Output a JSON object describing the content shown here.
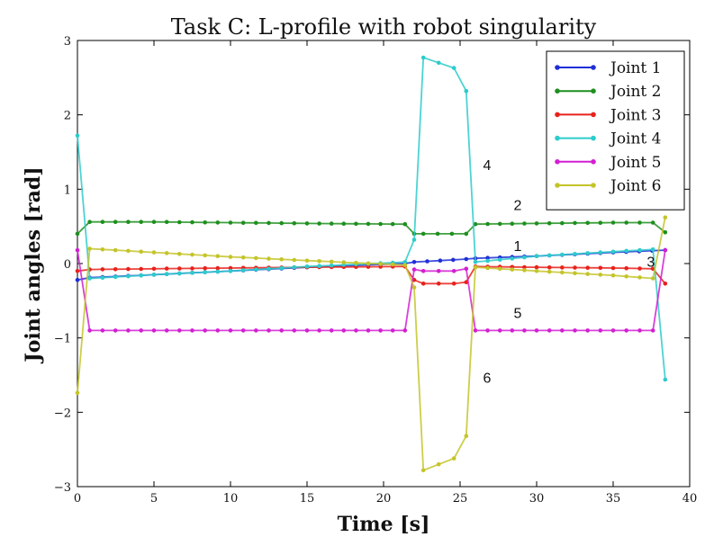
{
  "chart_data": {
    "type": "line",
    "title": "Task C: L-profile with robot singularity",
    "xlabel": "Time [s]",
    "ylabel": "Joint angles [rad]",
    "xlim": [
      0,
      40
    ],
    "ylim": [
      -3,
      3
    ],
    "xticks": [
      0,
      5,
      10,
      15,
      20,
      25,
      30,
      35,
      40
    ],
    "yticks": [
      -3,
      -2,
      -1,
      0,
      1,
      2,
      3
    ],
    "xtick_labels": [
      "0",
      "5",
      "10",
      "15",
      "20",
      "25",
      "30",
      "35",
      "40"
    ],
    "ytick_labels": [
      "−3",
      "−2",
      "−1",
      "0",
      "1",
      "2",
      "3"
    ],
    "grid": false,
    "legend": "top-right",
    "series": [
      {
        "name": "Joint 1",
        "color": "#1f2fd6",
        "x": [
          0,
          0.8,
          5,
          10,
          15,
          21.4,
          22,
          25.4,
          26,
          30,
          35,
          38.4
        ],
        "y": [
          -0.22,
          -0.19,
          -0.15,
          -0.1,
          -0.05,
          0,
          0.02,
          0.06,
          0.07,
          0.1,
          0.15,
          0.18
        ]
      },
      {
        "name": "Joint 2",
        "color": "#1e8f1e",
        "x": [
          0,
          0.8,
          5,
          10,
          15,
          21.4,
          22,
          22.6,
          25.4,
          26,
          30,
          35,
          37.6,
          38.4
        ],
        "y": [
          0.4,
          0.56,
          0.56,
          0.55,
          0.54,
          0.53,
          0.4,
          0.4,
          0.4,
          0.53,
          0.54,
          0.55,
          0.55,
          0.42
        ]
      },
      {
        "name": "Joint 3",
        "color": "#e8211b",
        "x": [
          0,
          0.8,
          5,
          10,
          15,
          21.4,
          22,
          22.6,
          23.6,
          24.6,
          25.4,
          26,
          30,
          35,
          37.6,
          38.4
        ],
        "y": [
          -0.1,
          -0.08,
          -0.07,
          -0.06,
          -0.05,
          -0.04,
          -0.22,
          -0.27,
          -0.27,
          -0.27,
          -0.25,
          -0.04,
          -0.05,
          -0.06,
          -0.07,
          -0.27
        ]
      },
      {
        "name": "Joint 4",
        "color": "#2ecbcb",
        "x": [
          0,
          0.8,
          5,
          10,
          15,
          21.4,
          22,
          22.6,
          23.6,
          24.6,
          25.4,
          26,
          30,
          35,
          37.6,
          38.4
        ],
        "y": [
          1.72,
          -0.2,
          -0.15,
          -0.1,
          -0.04,
          0.02,
          0.32,
          2.77,
          2.7,
          2.63,
          2.32,
          0.02,
          0.1,
          0.16,
          0.19,
          -1.56
        ]
      },
      {
        "name": "Joint 5",
        "color": "#d21fd2",
        "x": [
          0,
          0.8,
          5,
          10,
          15,
          21.4,
          22,
          22.6,
          23.6,
          24.6,
          25.4,
          26,
          30,
          35,
          37.6,
          38.4
        ],
        "y": [
          0.18,
          -0.9,
          -0.9,
          -0.9,
          -0.9,
          -0.9,
          -0.08,
          -0.1,
          -0.1,
          -0.1,
          -0.07,
          -0.9,
          -0.9,
          -0.9,
          -0.9,
          0.18
        ]
      },
      {
        "name": "Joint 6",
        "color": "#c4c42a",
        "x": [
          0,
          0.8,
          5,
          10,
          15,
          21.4,
          22,
          22.6,
          23.6,
          24.6,
          25.4,
          26,
          30,
          35,
          37.6,
          38.4
        ],
        "y": [
          -1.74,
          0.2,
          0.15,
          0.09,
          0.04,
          -0.02,
          -0.32,
          -2.78,
          -2.7,
          -2.62,
          -2.32,
          -0.05,
          -0.1,
          -0.16,
          -0.2,
          0.62
        ]
      }
    ],
    "annotations": [
      {
        "text": "1",
        "x": 28.5,
        "y": 0.17
      },
      {
        "text": "2",
        "x": 28.5,
        "y": 0.72
      },
      {
        "text": "3",
        "x": 37.2,
        "y": -0.04
      },
      {
        "text": "4",
        "x": 26.5,
        "y": 1.26
      },
      {
        "text": "5",
        "x": 28.5,
        "y": -0.73
      },
      {
        "text": "6",
        "x": 26.5,
        "y": -1.6
      }
    ]
  }
}
